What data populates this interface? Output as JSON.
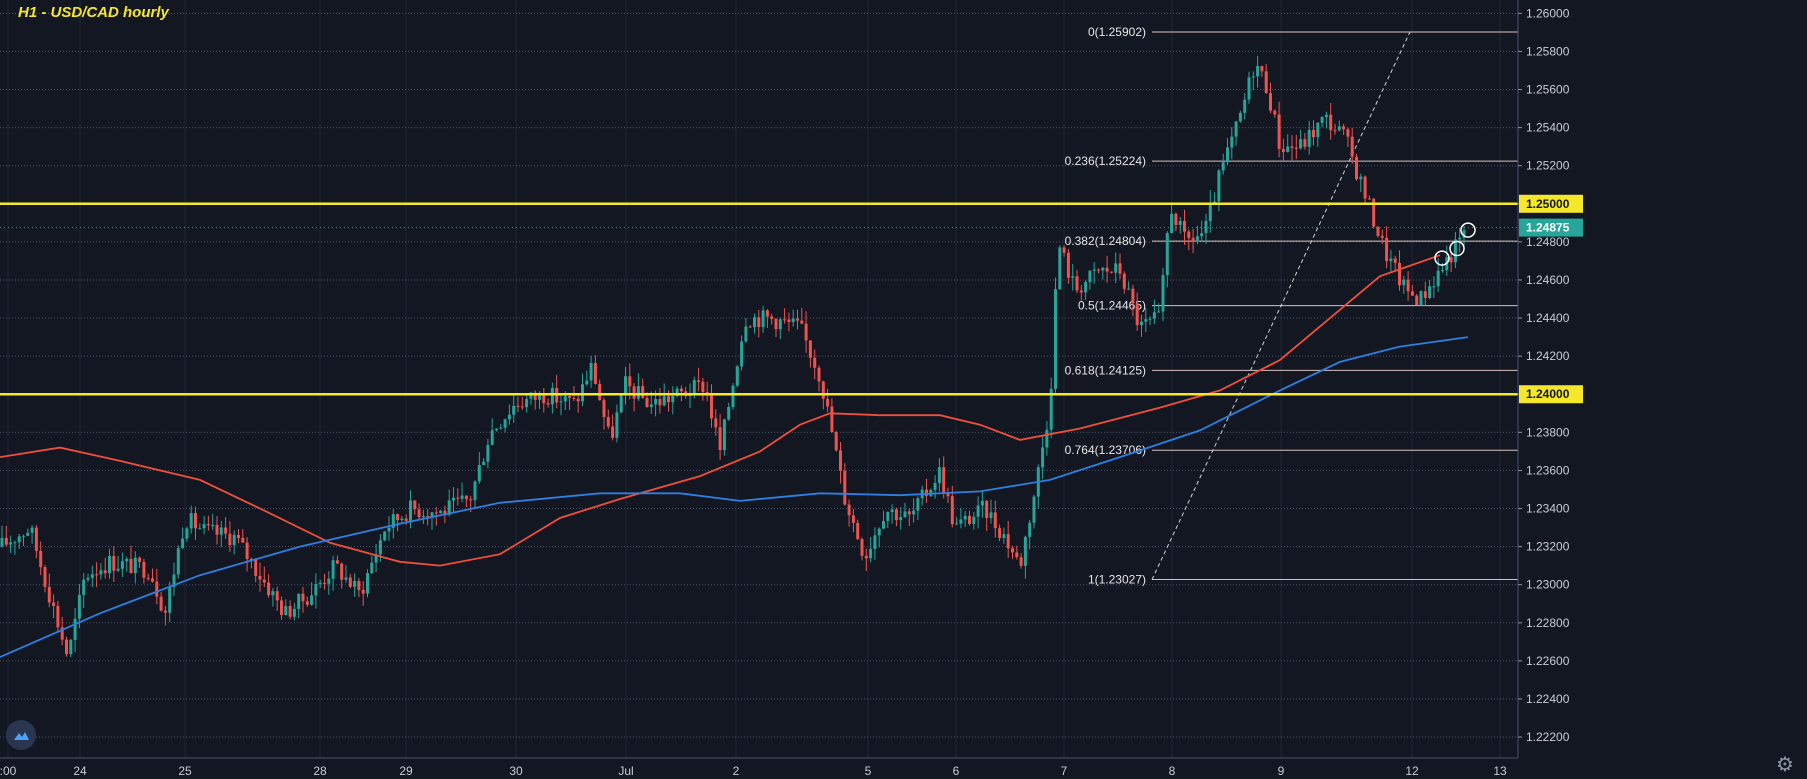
{
  "chart_data": {
    "type": "candlestick",
    "title": "H1 - USD/CAD hourly",
    "x_ticks": [
      ":00",
      "24",
      "25",
      "28",
      "29",
      "30",
      "Jul",
      "2",
      "5",
      "6",
      "7",
      "8",
      "9",
      "12",
      "13"
    ],
    "y_ticks": [
      "1.22200",
      "1.22400",
      "1.22600",
      "1.22800",
      "1.23000",
      "1.23200",
      "1.23400",
      "1.23600",
      "1.23800",
      "1.24000",
      "1.24200",
      "1.24400",
      "1.24600",
      "1.24800",
      "1.25000",
      "1.25200",
      "1.25400",
      "1.25600",
      "1.25800",
      "1.26000"
    ],
    "ylim": [
      1.2209,
      1.2607
    ],
    "current_price": "1.24875",
    "horizontal_levels": [
      "1.25000",
      "1.24000"
    ],
    "fibonacci": [
      {
        "label": "0(1.25902)",
        "value": 1.25902
      },
      {
        "label": "0.236(1.25224)",
        "value": 1.25224
      },
      {
        "label": "0.382(1.24804)",
        "value": 1.24804
      },
      {
        "label": "0.5(1.24465)",
        "value": 1.24465
      },
      {
        "label": "0.618(1.24125)",
        "value": 1.24125
      },
      {
        "label": "0.764(1.23706)",
        "value": 1.23706
      },
      {
        "label": "1(1.23027)",
        "value": 1.23027
      }
    ],
    "ohlc_anchors": [
      {
        "x": 0,
        "v": 1.232
      },
      {
        "x": 30,
        "v": 1.233
      },
      {
        "x": 55,
        "v": 1.2285
      },
      {
        "x": 68,
        "v": 1.2262
      },
      {
        "x": 85,
        "v": 1.2305
      },
      {
        "x": 110,
        "v": 1.2312
      },
      {
        "x": 150,
        "v": 1.2308
      },
      {
        "x": 165,
        "v": 1.2285
      },
      {
        "x": 185,
        "v": 1.2335
      },
      {
        "x": 205,
        "v": 1.2328
      },
      {
        "x": 235,
        "v": 1.2325
      },
      {
        "x": 260,
        "v": 1.2305
      },
      {
        "x": 285,
        "v": 1.2285
      },
      {
        "x": 310,
        "v": 1.2295
      },
      {
        "x": 335,
        "v": 1.231
      },
      {
        "x": 360,
        "v": 1.2295
      },
      {
        "x": 385,
        "v": 1.233
      },
      {
        "x": 410,
        "v": 1.234
      },
      {
        "x": 440,
        "v": 1.2338
      },
      {
        "x": 470,
        "v": 1.2345
      },
      {
        "x": 490,
        "v": 1.238
      },
      {
        "x": 515,
        "v": 1.2395
      },
      {
        "x": 545,
        "v": 1.24
      },
      {
        "x": 575,
        "v": 1.2395
      },
      {
        "x": 592,
        "v": 1.2415
      },
      {
        "x": 610,
        "v": 1.2375
      },
      {
        "x": 625,
        "v": 1.2405
      },
      {
        "x": 650,
        "v": 1.2395
      },
      {
        "x": 680,
        "v": 1.24
      },
      {
        "x": 705,
        "v": 1.2405
      },
      {
        "x": 720,
        "v": 1.237
      },
      {
        "x": 745,
        "v": 1.244
      },
      {
        "x": 770,
        "v": 1.244
      },
      {
        "x": 800,
        "v": 1.2435
      },
      {
        "x": 820,
        "v": 1.241
      },
      {
        "x": 832,
        "v": 1.238
      },
      {
        "x": 845,
        "v": 1.2345
      },
      {
        "x": 865,
        "v": 1.2315
      },
      {
        "x": 885,
        "v": 1.234
      },
      {
        "x": 910,
        "v": 1.2335
      },
      {
        "x": 940,
        "v": 1.236
      },
      {
        "x": 955,
        "v": 1.233
      },
      {
        "x": 985,
        "v": 1.234
      },
      {
        "x": 1005,
        "v": 1.2325
      },
      {
        "x": 1020,
        "v": 1.231
      },
      {
        "x": 1035,
        "v": 1.235
      },
      {
        "x": 1050,
        "v": 1.2395
      },
      {
        "x": 1058,
        "v": 1.248
      },
      {
        "x": 1075,
        "v": 1.2455
      },
      {
        "x": 1100,
        "v": 1.2465
      },
      {
        "x": 1120,
        "v": 1.2465
      },
      {
        "x": 1140,
        "v": 1.2435
      },
      {
        "x": 1160,
        "v": 1.244
      },
      {
        "x": 1170,
        "v": 1.25
      },
      {
        "x": 1185,
        "v": 1.248
      },
      {
        "x": 1205,
        "v": 1.2485
      },
      {
        "x": 1220,
        "v": 1.2515
      },
      {
        "x": 1240,
        "v": 1.2545
      },
      {
        "x": 1255,
        "v": 1.2575
      },
      {
        "x": 1268,
        "v": 1.256
      },
      {
        "x": 1280,
        "v": 1.253
      },
      {
        "x": 1300,
        "v": 1.253
      },
      {
        "x": 1325,
        "v": 1.2545
      },
      {
        "x": 1345,
        "v": 1.2535
      },
      {
        "x": 1365,
        "v": 1.2505
      },
      {
        "x": 1385,
        "v": 1.2475
      },
      {
        "x": 1405,
        "v": 1.2455
      },
      {
        "x": 1420,
        "v": 1.245
      },
      {
        "x": 1440,
        "v": 1.2465
      },
      {
        "x": 1468,
        "v": 1.2487
      }
    ],
    "moving_averages": [
      {
        "color": "#ef4f3c",
        "points": [
          [
            0,
            1.2367
          ],
          [
            60,
            1.2372
          ],
          [
            120,
            1.2365
          ],
          [
            200,
            1.2355
          ],
          [
            260,
            1.234
          ],
          [
            330,
            1.2322
          ],
          [
            400,
            1.2312
          ],
          [
            440,
            1.231
          ],
          [
            500,
            1.2316
          ],
          [
            560,
            1.2335
          ],
          [
            620,
            1.2345
          ],
          [
            700,
            1.2357
          ],
          [
            760,
            1.237
          ],
          [
            800,
            1.2384
          ],
          [
            830,
            1.239
          ],
          [
            880,
            1.2389
          ],
          [
            940,
            1.2389
          ],
          [
            980,
            1.2384
          ],
          [
            1020,
            1.2376
          ],
          [
            1080,
            1.2382
          ],
          [
            1160,
            1.2393
          ],
          [
            1220,
            1.2402
          ],
          [
            1280,
            1.2418
          ],
          [
            1330,
            1.244
          ],
          [
            1380,
            1.2462
          ],
          [
            1440,
            1.2473
          ]
        ]
      },
      {
        "color": "#2f7fe0",
        "points": [
          [
            0,
            1.2262
          ],
          [
            100,
            1.2285
          ],
          [
            200,
            1.2305
          ],
          [
            300,
            1.232
          ],
          [
            400,
            1.2332
          ],
          [
            500,
            1.2343
          ],
          [
            600,
            1.2348
          ],
          [
            680,
            1.2348
          ],
          [
            740,
            1.2344
          ],
          [
            820,
            1.2348
          ],
          [
            900,
            1.2347
          ],
          [
            980,
            1.2349
          ],
          [
            1050,
            1.2355
          ],
          [
            1120,
            1.2367
          ],
          [
            1200,
            1.2381
          ],
          [
            1280,
            1.2402
          ],
          [
            1340,
            1.2417
          ],
          [
            1400,
            1.2425
          ],
          [
            1468,
            1.243
          ]
        ]
      }
    ]
  }
}
